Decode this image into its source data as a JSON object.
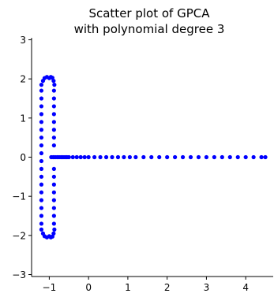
{
  "chart_data": {
    "type": "scatter",
    "title_lines": [
      "Scatter plot of GPCA",
      "with polynomial degree 3"
    ],
    "xlabel": "",
    "ylabel": "",
    "xlim": [
      -1.45,
      4.7
    ],
    "ylim": [
      -3.05,
      3.05
    ],
    "x_ticks": [
      -1,
      0,
      1,
      2,
      3,
      4
    ],
    "x_tick_labels": [
      "−1",
      "0",
      "1",
      "2",
      "3",
      "4"
    ],
    "y_ticks": [
      -3,
      -2,
      -1,
      0,
      1,
      2,
      3
    ],
    "y_tick_labels": [
      "−3",
      "−2",
      "−1",
      "0",
      "1",
      "2",
      "3"
    ],
    "grid": false,
    "marker_color": "#0000ff",
    "series": [
      {
        "points": [
          [
            -1.2,
            -0.1
          ],
          [
            -1.2,
            0.1
          ],
          [
            -1.2,
            0.3
          ],
          [
            -1.2,
            0.5
          ],
          [
            -1.2,
            0.7
          ],
          [
            -1.2,
            0.9
          ],
          [
            -1.2,
            1.1
          ],
          [
            -1.2,
            1.3
          ],
          [
            -1.2,
            1.5
          ],
          [
            -1.2,
            1.7
          ],
          [
            -1.2,
            -0.3
          ],
          [
            -1.2,
            -0.5
          ],
          [
            -1.2,
            -0.7
          ],
          [
            -1.2,
            -0.9
          ],
          [
            -1.2,
            -1.1
          ],
          [
            -1.2,
            -1.3
          ],
          [
            -1.2,
            -1.5
          ],
          [
            -1.2,
            -1.7
          ],
          [
            -0.88,
            0.3
          ],
          [
            -0.88,
            0.5
          ],
          [
            -0.88,
            0.7
          ],
          [
            -0.88,
            0.9
          ],
          [
            -0.88,
            1.1
          ],
          [
            -0.88,
            1.3
          ],
          [
            -0.88,
            1.5
          ],
          [
            -0.88,
            1.7
          ],
          [
            -0.88,
            -0.3
          ],
          [
            -0.88,
            -0.5
          ],
          [
            -0.88,
            -0.7
          ],
          [
            -0.88,
            -0.9
          ],
          [
            -0.88,
            -1.1
          ],
          [
            -0.88,
            -1.3
          ],
          [
            -0.88,
            -1.5
          ],
          [
            -0.88,
            -1.7
          ],
          [
            -1.2,
            1.85
          ],
          [
            -1.16,
            1.95
          ],
          [
            -1.12,
            2.02
          ],
          [
            -1.06,
            2.05
          ],
          [
            -1.0,
            2.02
          ],
          [
            -0.96,
            2.05
          ],
          [
            -0.92,
            2.03
          ],
          [
            -0.89,
            1.95
          ],
          [
            -0.87,
            1.85
          ],
          [
            -1.2,
            -1.85
          ],
          [
            -1.16,
            -1.95
          ],
          [
            -1.12,
            -2.02
          ],
          [
            -1.06,
            -2.05
          ],
          [
            -1.0,
            -2.02
          ],
          [
            -0.96,
            -2.05
          ],
          [
            -0.92,
            -2.03
          ],
          [
            -0.89,
            -1.95
          ],
          [
            -0.87,
            -1.85
          ],
          [
            -0.95,
            0.0
          ],
          [
            -0.9,
            0.0
          ],
          [
            -0.85,
            0.0
          ],
          [
            -0.8,
            0.0
          ],
          [
            -0.75,
            0.0
          ],
          [
            -0.7,
            0.0
          ],
          [
            -0.65,
            0.0
          ],
          [
            -0.6,
            0.0
          ],
          [
            -0.55,
            0.0
          ],
          [
            -0.5,
            0.0
          ],
          [
            -0.4,
            0.0
          ],
          [
            -0.3,
            0.0
          ],
          [
            -0.2,
            0.0
          ],
          [
            -0.1,
            0.0
          ],
          [
            0.0,
            0.0
          ],
          [
            0.15,
            0.0
          ],
          [
            0.3,
            0.0
          ],
          [
            0.45,
            0.0
          ],
          [
            0.6,
            0.0
          ],
          [
            0.75,
            0.0
          ],
          [
            0.9,
            0.0
          ],
          [
            1.05,
            0.0
          ],
          [
            1.2,
            0.0
          ],
          [
            1.4,
            0.0
          ],
          [
            1.6,
            0.0
          ],
          [
            1.8,
            0.0
          ],
          [
            2.0,
            0.0
          ],
          [
            2.2,
            0.0
          ],
          [
            2.4,
            0.0
          ],
          [
            2.6,
            0.0
          ],
          [
            2.8,
            0.0
          ],
          [
            3.0,
            0.0
          ],
          [
            3.2,
            0.0
          ],
          [
            3.4,
            0.0
          ],
          [
            3.6,
            0.0
          ],
          [
            3.8,
            0.0
          ],
          [
            4.0,
            0.0
          ],
          [
            4.2,
            0.0
          ],
          [
            4.4,
            0.0
          ],
          [
            4.5,
            0.0
          ]
        ]
      }
    ]
  }
}
